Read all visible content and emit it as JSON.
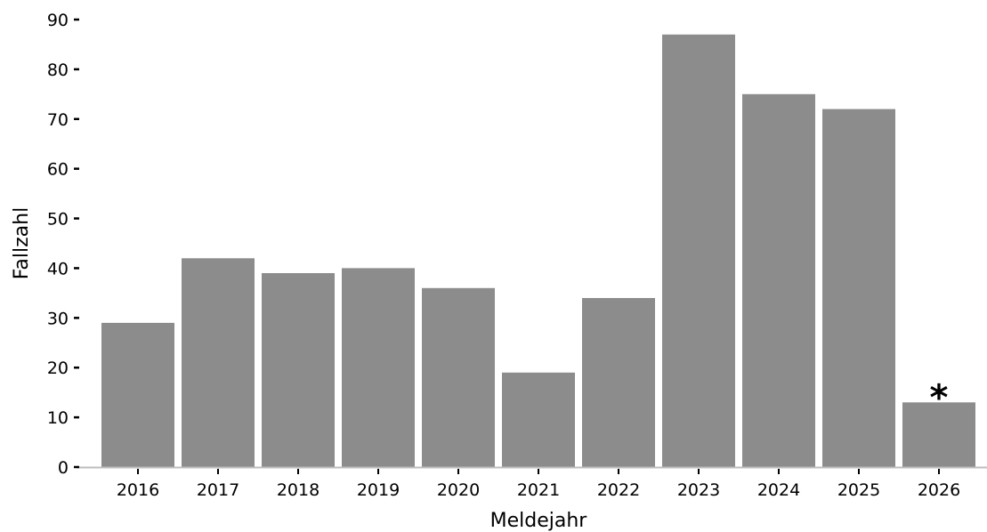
{
  "chart_data": {
    "type": "bar",
    "categories": [
      "2016",
      "2017",
      "2018",
      "2019",
      "2020",
      "2021",
      "2022",
      "2023",
      "2024",
      "2025",
      "2026"
    ],
    "values": [
      29,
      42,
      39,
      40,
      36,
      19,
      34,
      87,
      75,
      72,
      13
    ],
    "xlabel": "Meldejahr",
    "ylabel": "Fallzahl",
    "ylim": [
      0,
      90
    ],
    "yticks": [
      0,
      10,
      20,
      30,
      40,
      50,
      60,
      70,
      80,
      90
    ],
    "grid": false,
    "legend": "none",
    "bar_color": "#8c8c8c",
    "axis_color": "#bdbdbd",
    "annotations": [
      {
        "category": "2026",
        "text": "*"
      }
    ]
  }
}
